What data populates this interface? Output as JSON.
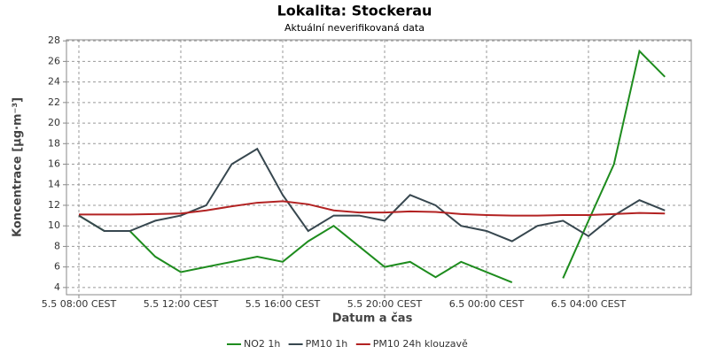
{
  "chart_data": {
    "type": "line",
    "title": "Lokalita: Stockerau",
    "subtitle": "Aktuální neverifikovaná data",
    "xlabel": "Datum a čas",
    "ylabel": "Koncentrace [µg·m⁻³]",
    "categories": [
      "5.5 08:00 CEST",
      null,
      null,
      null,
      "5.5 12:00 CEST",
      null,
      null,
      null,
      "5.5 16:00 CEST",
      null,
      null,
      null,
      "5.5 20:00 CEST",
      null,
      null,
      null,
      "6.5 00:00 CEST",
      null,
      null,
      null,
      "6.5 04:00 CEST",
      null,
      null,
      null
    ],
    "series": [
      {
        "name": "NO2 1h",
        "color": "#1e8c1e",
        "values": [
          11,
          9.5,
          9.5,
          7,
          5.5,
          6,
          6.5,
          7,
          6.5,
          8.5,
          10,
          8,
          6,
          6.5,
          5,
          6.5,
          5.5,
          4.5,
          null,
          4.9,
          10.5,
          16,
          27,
          24.5
        ]
      },
      {
        "name": "PM10 1h",
        "color": "#37474f",
        "values": [
          11,
          9.5,
          9.5,
          10.5,
          11,
          12,
          16,
          17.5,
          13,
          9.5,
          11,
          11,
          10.5,
          13,
          12,
          10,
          9.5,
          8.5,
          10,
          10.5,
          9,
          11,
          12.5,
          11.5
        ]
      },
      {
        "name": "PM10 24h klouzavě",
        "color": "#b22222",
        "values": [
          11.1,
          11.1,
          11.1,
          11.15,
          11.2,
          11.5,
          11.9,
          12.25,
          12.4,
          12.1,
          11.5,
          11.3,
          11.3,
          11.4,
          11.35,
          11.15,
          11.05,
          11,
          11,
          11.05,
          11.05,
          11.15,
          11.25,
          11.2
        ]
      }
    ],
    "ylim": [
      3.3,
      28.1
    ],
    "yticks": [
      4,
      6,
      8,
      10,
      12,
      14,
      16,
      18,
      20,
      22,
      24,
      26,
      28
    ],
    "grid": true,
    "legend": "bottom"
  }
}
